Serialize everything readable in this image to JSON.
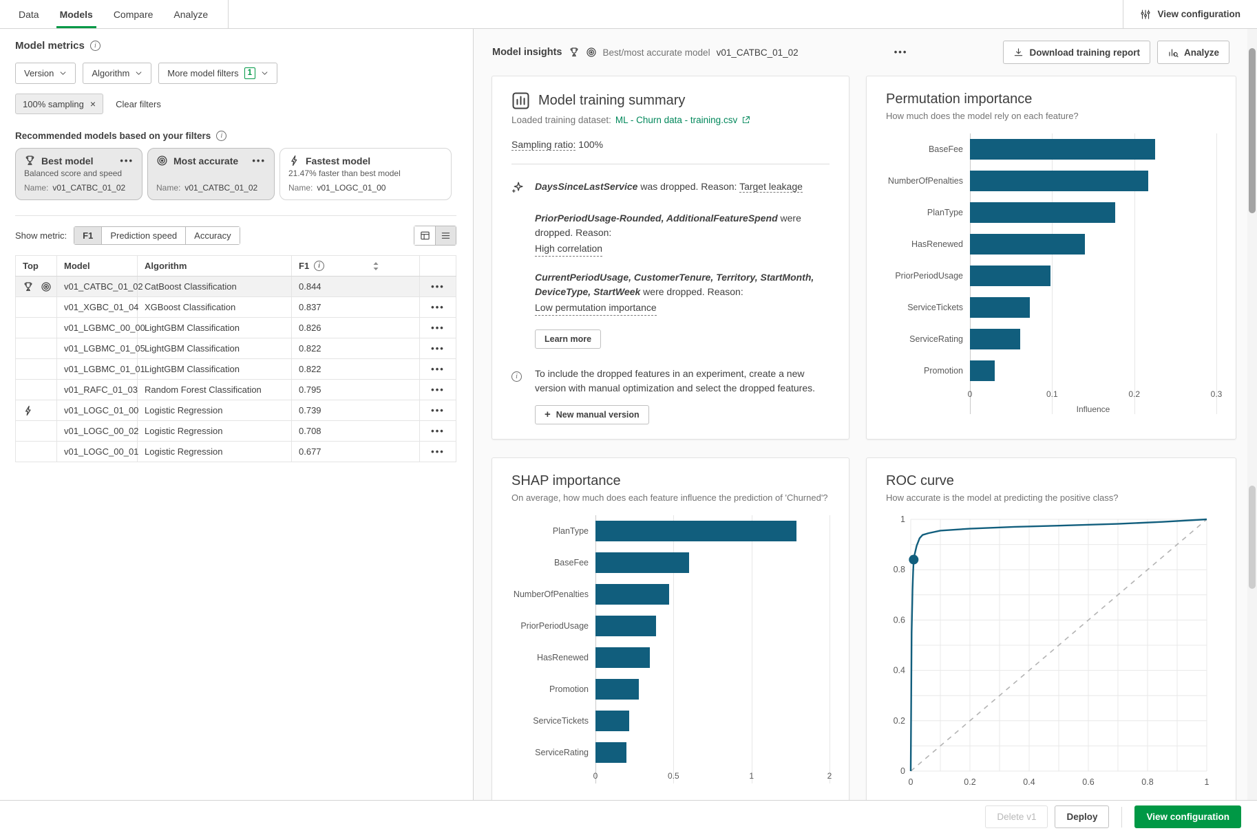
{
  "colors": {
    "accent_green": "#009845",
    "link_green": "#00875a",
    "bar_teal": "#115e7d"
  },
  "tabs": [
    {
      "label": "Data"
    },
    {
      "label": "Models",
      "active": true
    },
    {
      "label": "Compare"
    },
    {
      "label": "Analyze"
    }
  ],
  "topbar": {
    "view_configuration": "View configuration"
  },
  "left_panel": {
    "title": "Model metrics",
    "filters": {
      "version": "Version",
      "algorithm": "Algorithm",
      "more": "More model filters",
      "more_count": "1"
    },
    "chip": "100% sampling",
    "clear_filters": "Clear filters",
    "recommended_label": "Recommended models based on your filters",
    "cards": [
      {
        "icon": "trophy",
        "title": "Best model",
        "subtitle": "Balanced score and speed",
        "name_label": "Name:",
        "name": "v01_CATBC_01_02",
        "selected": true
      },
      {
        "icon": "bullseye",
        "title": "Most accurate",
        "subtitle": "",
        "name_label": "Name:",
        "name": "v01_CATBC_01_02",
        "selected": true
      },
      {
        "icon": "lightning",
        "title": "Fastest model",
        "subtitle": "21.47% faster than best model",
        "name_label": "Name:",
        "name": "v01_LOGC_01_00",
        "selected": false
      }
    ],
    "show_metric_label": "Show metric:",
    "metric_options": [
      "F1",
      "Prediction speed",
      "Accuracy"
    ],
    "metric_selected": "F1",
    "table": {
      "headers": {
        "top": "Top",
        "model": "Model",
        "algorithm": "Algorithm",
        "metric": "F1"
      },
      "rows": [
        {
          "badges": [
            "trophy",
            "bullseye"
          ],
          "model": "v01_CATBC_01_02",
          "algorithm": "CatBoost Classification",
          "f1": "0.844",
          "highlight": true
        },
        {
          "badges": [],
          "model": "v01_XGBC_01_04",
          "algorithm": "XGBoost Classification",
          "f1": "0.837"
        },
        {
          "badges": [],
          "model": "v01_LGBMC_00_00",
          "algorithm": "LightGBM Classification",
          "f1": "0.826"
        },
        {
          "badges": [],
          "model": "v01_LGBMC_01_05",
          "algorithm": "LightGBM Classification",
          "f1": "0.822"
        },
        {
          "badges": [],
          "model": "v01_LGBMC_01_01",
          "algorithm": "LightGBM Classification",
          "f1": "0.822"
        },
        {
          "badges": [],
          "model": "v01_RAFC_01_03",
          "algorithm": "Random Forest Classification",
          "f1": "0.795"
        },
        {
          "badges": [
            "lightning"
          ],
          "model": "v01_LOGC_01_00",
          "algorithm": "Logistic Regression",
          "f1": "0.739"
        },
        {
          "badges": [],
          "model": "v01_LOGC_00_02",
          "algorithm": "Logistic Regression",
          "f1": "0.708"
        },
        {
          "badges": [],
          "model": "v01_LOGC_00_01",
          "algorithm": "Logistic Regression",
          "f1": "0.677"
        }
      ]
    }
  },
  "insights": {
    "title": "Model insights",
    "model_label": "Best/most accurate model",
    "model_name": "v01_CATBC_01_02",
    "download_btn": "Download training report",
    "analyze_btn": "Analyze"
  },
  "training_summary": {
    "title": "Model training summary",
    "dataset_label": "Loaded training dataset:",
    "dataset_link": "ML - Churn data - training.csv",
    "sampling_label": "Sampling ratio:",
    "sampling_value": "100%",
    "items": [
      {
        "features": "DaysSinceLastService",
        "text": " was dropped. Reason: ",
        "reason": "Target leakage",
        "reason_inline": true
      },
      {
        "features": "PriorPeriodUsage-Rounded, AdditionalFeatureSpend",
        "text": " were dropped. Reason:",
        "reason": "High correlation",
        "reason_inline": false
      },
      {
        "features": "CurrentPeriodUsage, CustomerTenure, Territory, StartMonth, DeviceType, StartWeek",
        "text": " were dropped. Reason:",
        "reason": "Low permutation importance",
        "reason_inline": false
      }
    ],
    "learn_more": "Learn more",
    "note": "To include the dropped features in an experiment, create a new version with manual optimization and select the dropped features.",
    "new_version": "New manual version"
  },
  "chart_data": [
    {
      "id": "permutation",
      "type": "bar",
      "orientation": "horizontal",
      "title": "Permutation importance",
      "subtitle": "How much does the model rely on each feature?",
      "categories": [
        "BaseFee",
        "NumberOfPenalties",
        "PlanType",
        "HasRenewed",
        "PriorPeriodUsage",
        "ServiceTickets",
        "ServiceRating",
        "Promotion"
      ],
      "values": [
        0.225,
        0.217,
        0.177,
        0.14,
        0.098,
        0.073,
        0.061,
        0.03
      ],
      "xticks": [
        0,
        0.1,
        0.2,
        0.3
      ],
      "xtick_labels": [
        "0",
        "0.1",
        "0.2",
        "0.3"
      ],
      "xlim": [
        0,
        0.3
      ],
      "xlabel": "Influence",
      "grid": true,
      "legend": false
    },
    {
      "id": "shap",
      "type": "bar",
      "orientation": "horizontal",
      "title": "SHAP importance",
      "subtitle": "On average, how much does each feature influence the prediction of 'Churned'?",
      "categories": [
        "PlanType",
        "BaseFee",
        "NumberOfPenalties",
        "PriorPeriodUsage",
        "HasRenewed",
        "Promotion",
        "ServiceTickets",
        "ServiceRating"
      ],
      "values": [
        1.58,
        0.6,
        0.47,
        0.39,
        0.35,
        0.28,
        0.215,
        0.2
      ],
      "xticks": [
        0,
        0.5,
        1,
        2
      ],
      "xtick_labels": [
        "0",
        "0.5",
        "1",
        "2"
      ],
      "xlim": [
        0,
        2
      ],
      "xlabel": "",
      "grid": true,
      "legend": false,
      "note": "x ticks are equally spaced as displayed"
    },
    {
      "id": "roc",
      "type": "line",
      "title": "ROC curve",
      "subtitle": "How accurate is the model at predicting the positive class?",
      "x": [
        0,
        0.003,
        0.005,
        0.006,
        0.008,
        0.01,
        0.013,
        0.016,
        0.02,
        0.03,
        0.04,
        0.06,
        0.1,
        0.2,
        0.35,
        0.5,
        0.7,
        0.85,
        1.0
      ],
      "y": [
        0,
        0.55,
        0.66,
        0.72,
        0.79,
        0.84,
        0.86,
        0.875,
        0.895,
        0.925,
        0.938,
        0.945,
        0.955,
        0.963,
        0.97,
        0.975,
        0.982,
        0.99,
        1.0
      ],
      "marker": {
        "x": 0.01,
        "y": 0.84
      },
      "diagonal": true,
      "xticks": [
        0,
        0.2,
        0.4,
        0.6,
        0.8,
        1
      ],
      "yticks": [
        0,
        0.2,
        0.4,
        0.6,
        0.8,
        1
      ],
      "xlim": [
        0,
        1
      ],
      "ylim": [
        0,
        1
      ],
      "grid": true
    }
  ],
  "footer": {
    "delete": "Delete v1",
    "deploy": "Deploy",
    "view_configuration": "View configuration"
  }
}
